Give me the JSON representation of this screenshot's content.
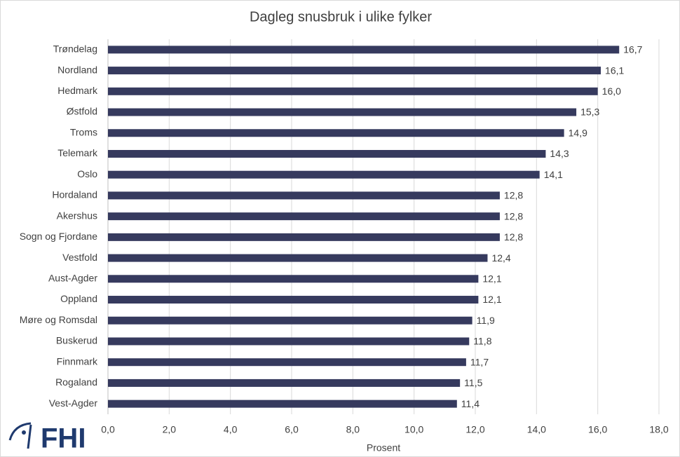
{
  "chart_data": {
    "type": "hbar",
    "title": "Dagleg snusbruk i ulike fylker",
    "x_label": "Prosent",
    "categories": [
      "Trøndelag",
      "Nordland",
      "Hedmark",
      "Østfold",
      "Troms",
      "Telemark",
      "Oslo",
      "Hordaland",
      "Akershus",
      "Sogn og Fjordane",
      "Vestfold",
      "Aust-Agder",
      "Oppland",
      "Møre og Romsdal",
      "Buskerud",
      "Finnmark",
      "Rogaland",
      "Vest-Agder"
    ],
    "values": [
      16.7,
      16.1,
      16.0,
      15.3,
      14.9,
      14.3,
      14.1,
      12.8,
      12.8,
      12.8,
      12.4,
      12.1,
      12.1,
      11.9,
      11.8,
      11.7,
      11.5,
      11.4
    ],
    "value_labels": [
      "16,7",
      "16,1",
      "16,0",
      "15,3",
      "14,9",
      "14,3",
      "14,1",
      "12,8",
      "12,8",
      "12,8",
      "12,4",
      "12,1",
      "12,1",
      "11,9",
      "11,8",
      "11,7",
      "11,5",
      "11,4"
    ],
    "color": "#363a5e",
    "xlim": [
      0,
      18
    ],
    "xticks": [
      {
        "value": 0,
        "label": "0,0"
      },
      {
        "value": 2,
        "label": "2,0"
      },
      {
        "value": 4,
        "label": "4,0"
      },
      {
        "value": 6,
        "label": "6,0"
      },
      {
        "value": 8,
        "label": "8,0"
      },
      {
        "value": 10,
        "label": "10,0"
      },
      {
        "value": 12,
        "label": "12,0"
      },
      {
        "value": 14,
        "label": "14,0"
      },
      {
        "value": 16,
        "label": "16,0"
      },
      {
        "value": 18,
        "label": "18,0"
      }
    ],
    "grid": true
  },
  "logo": {
    "text": "FHI"
  }
}
